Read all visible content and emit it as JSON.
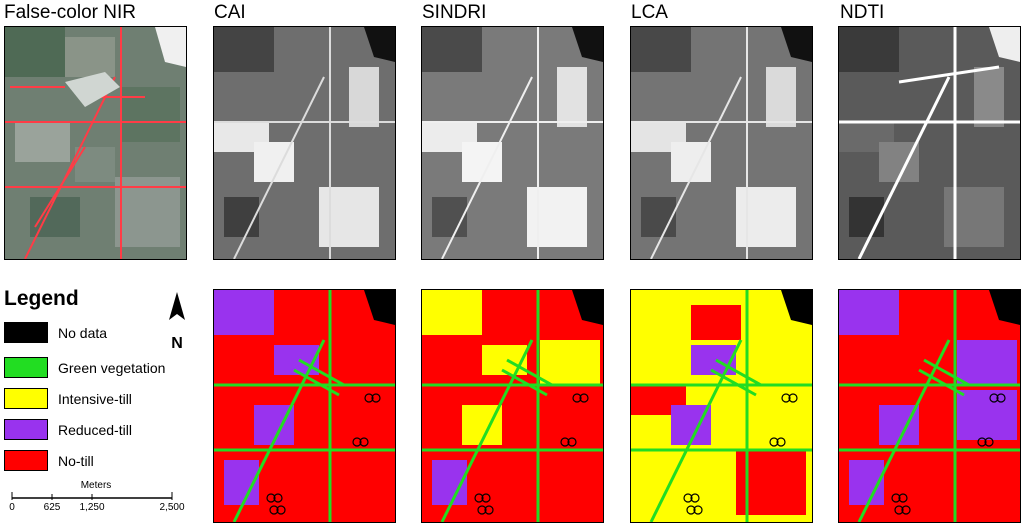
{
  "panel_titles": {
    "nir": "False-color NIR",
    "cai": "CAI",
    "sindri": "SINDRI",
    "lca": "LCA",
    "ndti": "NDTI"
  },
  "legend": {
    "title": "Legend",
    "items": [
      {
        "label": "No data",
        "color": "#000000"
      },
      {
        "label": "Green vegetation",
        "color": "#22dd22"
      },
      {
        "label": "Intensive-till",
        "color": "#ffff00"
      },
      {
        "label": "Reduced-till",
        "color": "#9933ee"
      },
      {
        "label": "No-till",
        "color": "#ff0000"
      }
    ]
  },
  "scalebar": {
    "unit": "Meters",
    "ticks": [
      "0",
      "625",
      "1,250",
      "2,500"
    ]
  },
  "north_arrow": "N"
}
